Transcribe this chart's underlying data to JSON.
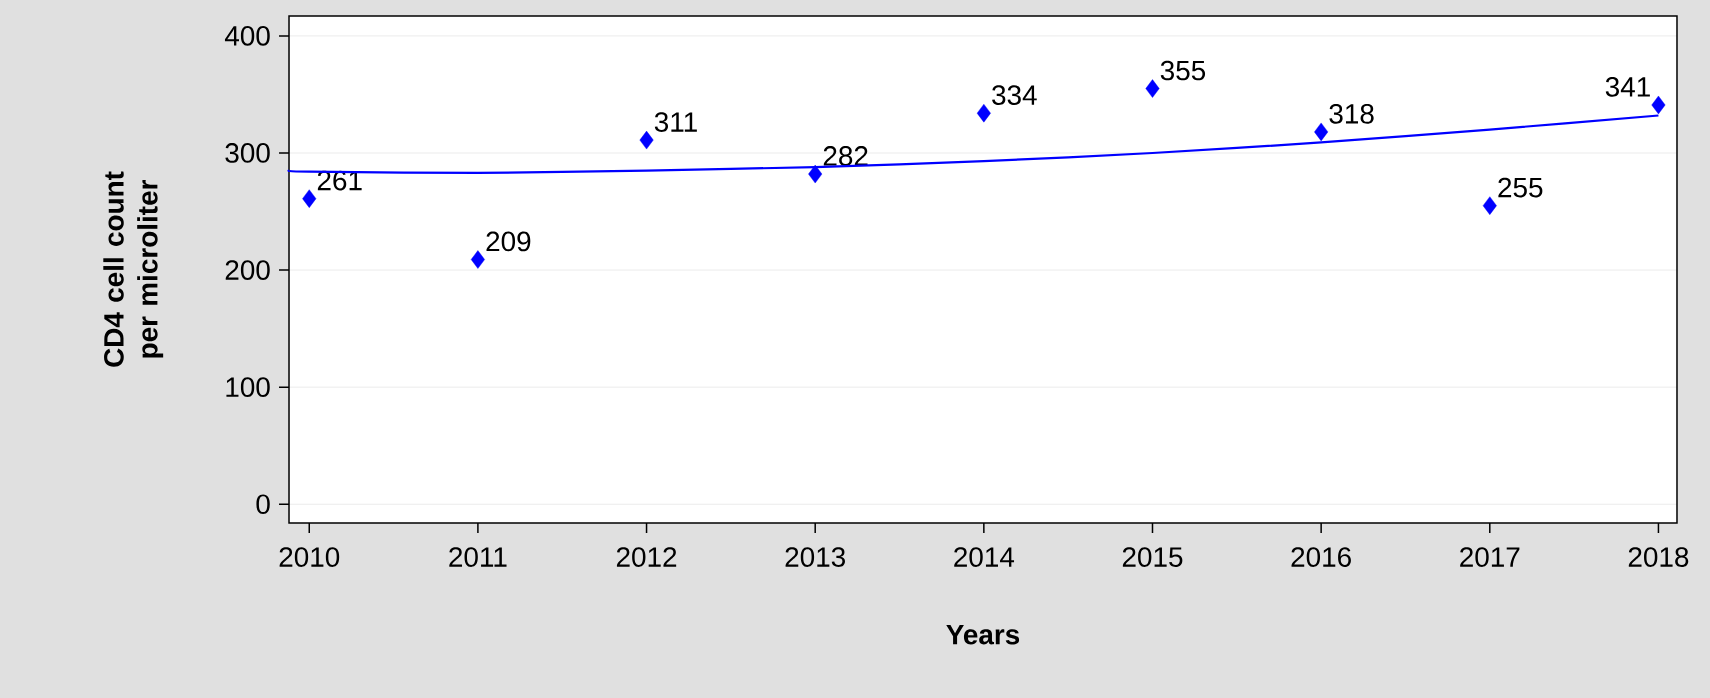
{
  "chart_data": {
    "type": "scatter",
    "xlabel": "Years",
    "ylabel": "CD4 cell count per microliter",
    "x": [
      2010,
      2011,
      2012,
      2013,
      2014,
      2015,
      2016,
      2017,
      2018
    ],
    "series": [
      {
        "color": "#0000ff",
        "marker": "diamond",
        "values": [
          261,
          209,
          311,
          282,
          334,
          355,
          318,
          255,
          341
        ],
        "value_labels": [
          "261",
          "209",
          "311",
          "282",
          "334",
          "355",
          "318",
          "255",
          "341"
        ]
      },
      {
        "type": "line",
        "color": "#0000ff",
        "marker": "none",
        "line_style": "solid",
        "x": [
          2009.88,
          2010,
          2011,
          2012,
          2013,
          2014,
          2015,
          2016,
          2017,
          2018
        ],
        "values": [
          285,
          284,
          283,
          285,
          288,
          293,
          300,
          309,
          320,
          332
        ]
      }
    ],
    "xlim": [
      2009.88,
      2018.11
    ],
    "ylim": [
      -16,
      417
    ],
    "xticks": [
      2010,
      2011,
      2012,
      2013,
      2014,
      2015,
      2016,
      2017,
      2018
    ],
    "yticks": [
      0,
      100,
      200,
      300,
      400
    ],
    "grid": "y"
  }
}
